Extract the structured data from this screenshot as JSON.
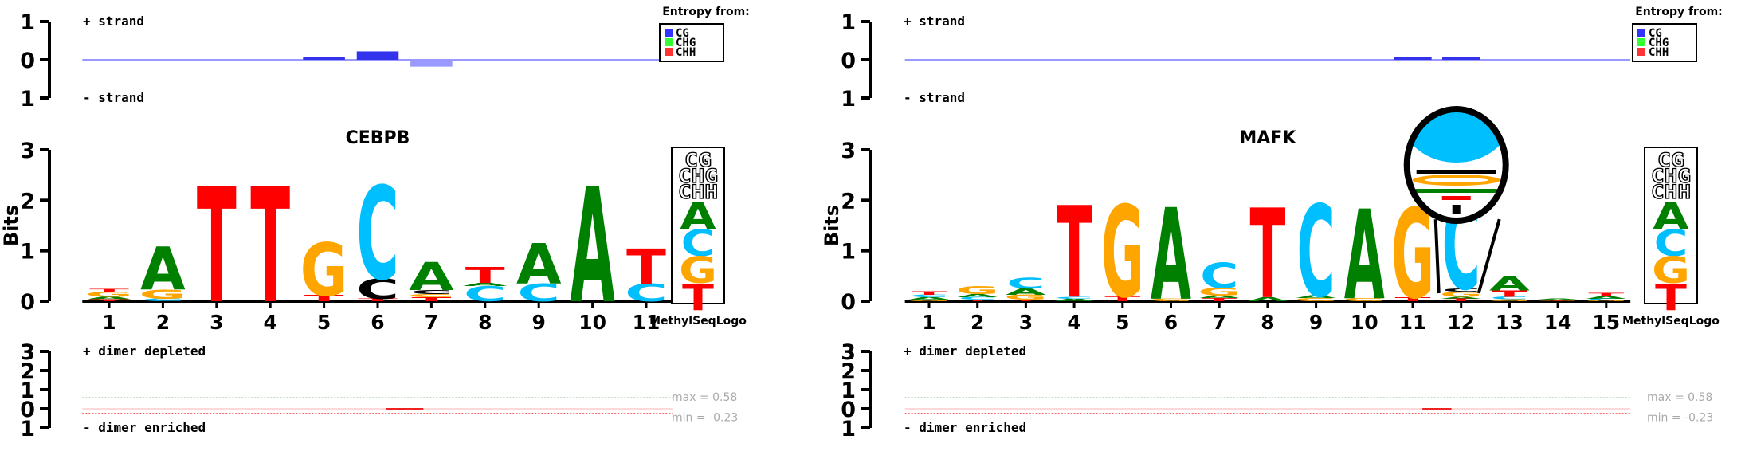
{
  "colors": {
    "A": "#008000",
    "C": "#00bfff",
    "G": "#ffa500",
    "T": "#ff0000",
    "methyl_C": "#000000",
    "CG": "#3333ff",
    "CHG": "#33ff33",
    "CHH": "#ff3333",
    "dimer_line": "#ff6666",
    "gridline": "#5aa05a"
  },
  "labels": {
    "plus_strand": "+ strand",
    "minus_strand": "- strand",
    "entropy_from": "Entropy from:",
    "entropy_legend": [
      "CG",
      "CHG",
      "CHH"
    ],
    "bits": "Bits",
    "methyl_seq_logo": "MethylSeqLogo",
    "legend_logo_letters": [
      "CG",
      "CHG",
      "CHH",
      "A",
      "C",
      "G",
      "T"
    ],
    "dimer_depleted": "+ dimer depleted",
    "dimer_enriched": "- dimer enriched",
    "max_label": "max = 0.58",
    "min_label": "min = -0.23"
  },
  "chart_data": [
    {
      "type": "sequence-logo",
      "title": "CEBPB",
      "ylabel": "Bits",
      "ylim": [
        0,
        3
      ],
      "yticks": [
        0,
        1,
        2,
        3
      ],
      "positions": [
        "1",
        "2",
        "3",
        "4",
        "5",
        "6",
        "7",
        "8",
        "9",
        "10",
        "11"
      ],
      "columns": [
        [
          [
            "T",
            0.04
          ],
          [
            "A",
            0.05
          ],
          [
            "G",
            0.1
          ],
          [
            "T",
            0.05
          ]
        ],
        [
          [
            "C",
            0.05
          ],
          [
            "G",
            0.18
          ],
          [
            "A",
            0.85
          ]
        ],
        [
          [
            "T",
            2.28
          ]
        ],
        [
          [
            "T",
            2.28
          ]
        ],
        [
          [
            "T",
            0.12
          ],
          [
            "G",
            1.05
          ]
        ],
        [
          [
            "T",
            0.05
          ],
          [
            "methyl_C",
            0.4
          ],
          [
            "C",
            1.85
          ]
        ],
        [
          [
            "T",
            0.08
          ],
          [
            "G",
            0.06
          ],
          [
            "methyl_C",
            0.08
          ],
          [
            "A",
            0.55
          ]
        ],
        [
          [
            "C",
            0.3
          ],
          [
            "A",
            0.06
          ],
          [
            "T",
            0.32
          ]
        ],
        [
          [
            "C",
            0.35
          ],
          [
            "A",
            0.8
          ]
        ],
        [
          [
            "A",
            2.28
          ]
        ],
        [
          [
            "C",
            0.35
          ],
          [
            "T",
            0.7
          ]
        ]
      ],
      "methylation_entropy": {
        "ylim": [
          -1,
          1
        ],
        "plus": [
          0,
          0,
          0,
          0,
          0.05,
          0.22,
          0,
          0,
          0,
          0,
          0
        ],
        "minus": [
          0,
          0,
          0,
          0,
          0,
          0,
          -0.18,
          0,
          0,
          0,
          0
        ]
      },
      "dimer": {
        "ylim": [
          -1,
          3
        ],
        "max": 0.58,
        "min": -0.23,
        "segments": [
          [
            6.15,
            6.85
          ]
        ]
      }
    },
    {
      "type": "sequence-logo",
      "title": "MAFK",
      "ylabel": "Bits",
      "ylim": [
        0,
        3
      ],
      "yticks": [
        0,
        1,
        2,
        3
      ],
      "positions": [
        "1",
        "2",
        "3",
        "4",
        "5",
        "6",
        "7",
        "8",
        "9",
        "10",
        "11",
        "12",
        "13",
        "14",
        "15"
      ],
      "columns": [
        [
          [
            "G",
            0.03
          ],
          [
            "A",
            0.05
          ],
          [
            "C",
            0.05
          ],
          [
            "T",
            0.07
          ]
        ],
        [
          [
            "T",
            0.03
          ],
          [
            "C",
            0.05
          ],
          [
            "A",
            0.06
          ],
          [
            "G",
            0.15
          ]
        ],
        [
          [
            "T",
            0.03
          ],
          [
            "G",
            0.1
          ],
          [
            "A",
            0.12
          ],
          [
            "C",
            0.22
          ]
        ],
        [
          [
            "A",
            0.05
          ],
          [
            "C",
            0.04
          ],
          [
            "T",
            1.82
          ]
        ],
        [
          [
            "T",
            0.1
          ],
          [
            "G",
            1.82
          ]
        ],
        [
          [
            "G",
            0.05
          ],
          [
            "A",
            1.82
          ]
        ],
        [
          [
            "T",
            0.06
          ],
          [
            "A",
            0.05
          ],
          [
            "G",
            0.15
          ],
          [
            "C",
            0.5
          ]
        ],
        [
          [
            "A",
            0.08
          ],
          [
            "T",
            1.78
          ]
        ],
        [
          [
            "G",
            0.06
          ],
          [
            "A",
            0.05
          ],
          [
            "C",
            1.82
          ]
        ],
        [
          [
            "G",
            0.06
          ],
          [
            "A",
            1.78
          ]
        ],
        [
          [
            "T",
            0.08
          ],
          [
            "G",
            1.78
          ]
        ],
        [
          [
            "T",
            0.05
          ],
          [
            "A",
            0.04
          ],
          [
            "G",
            0.1
          ],
          [
            "methyl_C",
            0.06
          ],
          [
            "C",
            1.78
          ]
        ],
        [
          [
            "G",
            0.04
          ],
          [
            "C",
            0.05
          ],
          [
            "T",
            0.12
          ],
          [
            "A",
            0.28
          ]
        ],
        [
          [
            "T",
            0.01
          ],
          [
            "G",
            0.01
          ],
          [
            "C",
            0.01
          ],
          [
            "A",
            0.02
          ]
        ],
        [
          [
            "G",
            0.02
          ],
          [
            "C",
            0.03
          ],
          [
            "A",
            0.05
          ],
          [
            "T",
            0.06
          ]
        ]
      ],
      "methylation_entropy": {
        "ylim": [
          -1,
          1
        ],
        "plus": [
          0,
          0,
          0,
          0,
          0,
          0,
          0,
          0,
          0,
          0,
          0.02,
          0.01,
          0,
          0,
          0
        ],
        "minus": [
          0,
          0,
          0,
          0,
          0,
          0,
          0,
          0,
          0,
          0,
          0,
          0,
          0,
          0,
          0
        ]
      },
      "dimer": {
        "ylim": [
          -1,
          3
        ],
        "max": 0.58,
        "min": -0.23,
        "segments": [
          [
            11.2,
            11.8
          ]
        ]
      },
      "zoom_position": "12"
    }
  ]
}
